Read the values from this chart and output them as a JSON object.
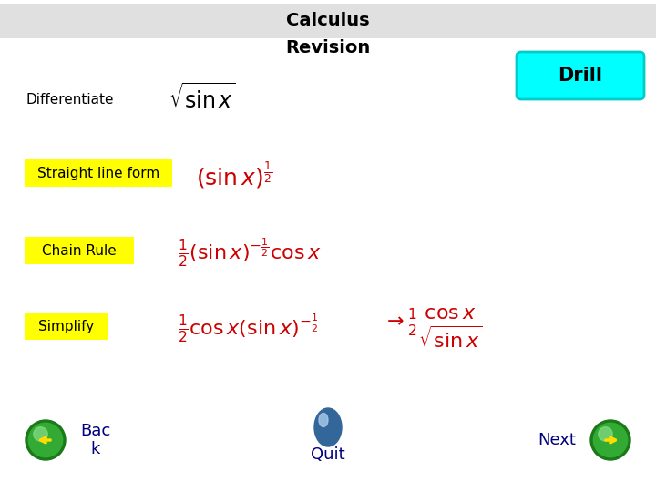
{
  "title_line1": "Calculus",
  "title_line2": "Revision",
  "title_bg_color": "#e0e0e0",
  "drill_text": "Drill",
  "drill_bg_color": "#00ffff",
  "drill_border_color": "#00cccc",
  "differentiate_label": "Differentiate",
  "question_formula": "$\\sqrt{\\sin x}$",
  "label1": "Straight line form",
  "label2": "Chain Rule",
  "label3": "Simplify",
  "label_bg": "#ffff00",
  "formula1": "$(\\sin x)^{\\frac{1}{2}}$",
  "formula2": "$\\frac{1}{2}(\\sin x)^{-\\frac{1}{2}}\\cos x$",
  "formula3a": "$\\frac{1}{2}\\cos x(\\sin x)^{-\\frac{1}{2}}$",
  "formula3b": "$\\rightarrow \\frac{1}{2}\\dfrac{\\cos x}{\\sqrt{\\sin x}}$",
  "formula_color": "#cc0000",
  "back_text": "Bac\nk",
  "quit_text": "Quit",
  "next_text": "Next",
  "nav_color": "#000080",
  "bg_color": "#ffffff",
  "title_fontsize": 14,
  "label_fontsize": 11,
  "formula_fontsize": 14,
  "nav_fontsize": 13
}
